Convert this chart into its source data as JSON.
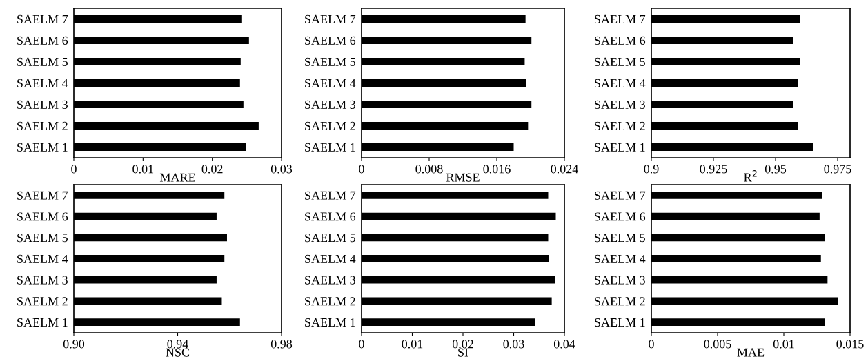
{
  "chart_data": [
    {
      "type": "bar",
      "orientation": "horizontal",
      "xlabel": "MARE",
      "categories": [
        "SAELM 7",
        "SAELM 6",
        "SAELM 5",
        "SAELM 4",
        "SAELM 3",
        "SAELM 2",
        "SAELM 1"
      ],
      "values": [
        0.0243,
        0.0253,
        0.0241,
        0.024,
        0.0245,
        0.0267,
        0.0249
      ],
      "color": "#000000",
      "xlim": [
        0,
        0.03
      ],
      "xticks": [
        0,
        0.01,
        0.02,
        0.03
      ]
    },
    {
      "type": "bar",
      "orientation": "horizontal",
      "xlabel": "RMSE",
      "categories": [
        "SAELM 7",
        "SAELM 6",
        "SAELM 5",
        "SAELM 4",
        "SAELM 3",
        "SAELM 2",
        "SAELM 1"
      ],
      "values": [
        0.0194,
        0.0201,
        0.0193,
        0.0195,
        0.0201,
        0.0197,
        0.018
      ],
      "color": "#000000",
      "xlim": [
        0,
        0.024
      ],
      "xticks": [
        0,
        0.008,
        0.016,
        0.024
      ]
    },
    {
      "type": "bar",
      "orientation": "horizontal",
      "xlabel": "R$^{2}$",
      "categories": [
        "SAELM 7",
        "SAELM 6",
        "SAELM 5",
        "SAELM 4",
        "SAELM 3",
        "SAELM 2",
        "SAELM 1"
      ],
      "values": [
        0.96,
        0.957,
        0.96,
        0.959,
        0.957,
        0.959,
        0.965
      ],
      "color": "#000000",
      "xlim": [
        0.9,
        0.98
      ],
      "xticks": [
        0.9,
        0.925,
        0.95,
        0.975
      ]
    },
    {
      "type": "bar",
      "orientation": "horizontal",
      "xlabel": "NSC",
      "categories": [
        "SAELM 7",
        "SAELM 6",
        "SAELM 5",
        "SAELM 4",
        "SAELM 3",
        "SAELM 2",
        "SAELM 1"
      ],
      "values": [
        0.958,
        0.955,
        0.959,
        0.958,
        0.955,
        0.957,
        0.964
      ],
      "color": "#000000",
      "xlim": [
        0.9,
        0.98
      ],
      "xticks": [
        {
          "value": 0.9,
          "label": "0.90"
        },
        0.94,
        0.98
      ]
    },
    {
      "type": "bar",
      "orientation": "horizontal",
      "xlabel": "SI",
      "categories": [
        "SAELM 7",
        "SAELM 6",
        "SAELM 5",
        "SAELM 4",
        "SAELM 3",
        "SAELM 2",
        "SAELM 1"
      ],
      "values": [
        0.0368,
        0.0383,
        0.0368,
        0.037,
        0.0382,
        0.0375,
        0.0342
      ],
      "color": "#000000",
      "xlim": [
        0,
        0.04
      ],
      "xticks": [
        0,
        0.01,
        0.02,
        0.03,
        0.04
      ]
    },
    {
      "type": "bar",
      "orientation": "horizontal",
      "xlabel": "MAE",
      "categories": [
        "SAELM 7",
        "SAELM 6",
        "SAELM 5",
        "SAELM 4",
        "SAELM 3",
        "SAELM 2",
        "SAELM 1"
      ],
      "values": [
        0.0129,
        0.0127,
        0.0131,
        0.0128,
        0.0133,
        0.0141,
        0.0131
      ],
      "color": "#000000",
      "xlim": [
        0,
        0.015
      ],
      "xticks": [
        0,
        0.005,
        0.01,
        0.015
      ]
    }
  ]
}
